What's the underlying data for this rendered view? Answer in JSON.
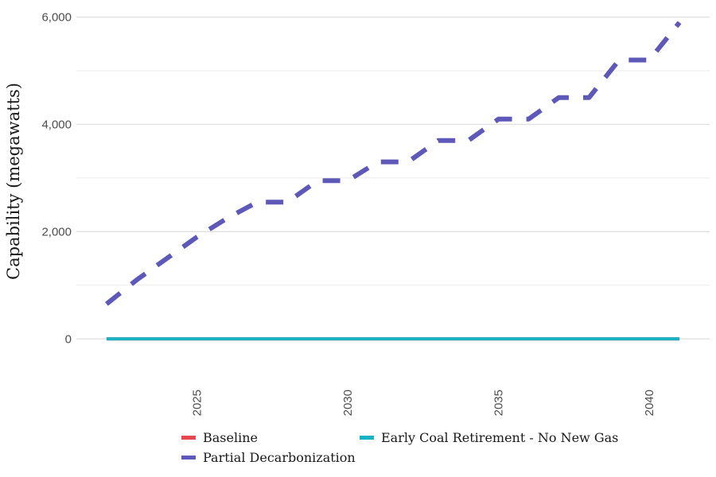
{
  "chart_data": {
    "type": "line",
    "title": "",
    "xlabel": "",
    "ylabel": "Capability (megawatts)",
    "x": [
      2022,
      2023,
      2024,
      2025,
      2026,
      2027,
      2028,
      2029,
      2030,
      2031,
      2032,
      2033,
      2034,
      2035,
      2036,
      2037,
      2038,
      2039,
      2040,
      2041
    ],
    "xlim": [
      2021,
      2042
    ],
    "ylim": [
      -500,
      6200
    ],
    "xticks": [
      "2025",
      "2030",
      "2035",
      "2040"
    ],
    "yticks": [
      "0",
      "2,000",
      "4,000",
      "6,000"
    ],
    "grid": true,
    "legend_position": "bottom",
    "series": [
      {
        "name": "Baseline",
        "color": "#e8474f",
        "dash": "solid",
        "values": [
          0,
          0,
          0,
          0,
          0,
          0,
          0,
          0,
          0,
          0,
          0,
          0,
          0,
          0,
          0,
          0,
          0,
          0,
          0,
          0
        ]
      },
      {
        "name": "Partial Decarbonization",
        "color": "#5e58b8",
        "dash": "dashed",
        "values": [
          650,
          1100,
          1500,
          1900,
          2250,
          2550,
          2550,
          2950,
          2950,
          3300,
          3300,
          3700,
          3700,
          4100,
          4100,
          4500,
          4500,
          5200,
          5200,
          5900
        ]
      },
      {
        "name": "Early Coal Retirement - No New Gas",
        "color": "#17b3c4",
        "dash": "solid",
        "values": [
          0,
          0,
          0,
          0,
          0,
          0,
          0,
          0,
          0,
          0,
          0,
          0,
          0,
          0,
          0,
          0,
          0,
          0,
          0,
          0
        ]
      }
    ]
  }
}
